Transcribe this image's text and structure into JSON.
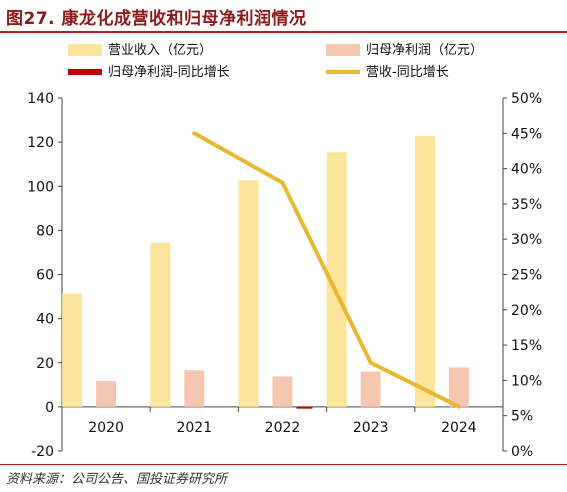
{
  "title": "图27. 康龙化成营收和归母净利润情况",
  "source": "资料来源：公司公告、国投证券研究所",
  "chart_data": {
    "type": "bar",
    "categories": [
      "2020",
      "2021",
      "2022",
      "2023",
      "2024"
    ],
    "series": [
      {
        "name": "营业收入（亿元）",
        "kind": "bar",
        "axis": "left",
        "color": "#fde49b",
        "values": [
          51.3,
          74.4,
          102.7,
          115.4,
          122.8
        ]
      },
      {
        "name": "归母净利润（亿元）",
        "kind": "bar",
        "axis": "left",
        "color": "#f6c7b0",
        "values": [
          11.7,
          16.6,
          13.8,
          16.0,
          17.9
        ]
      },
      {
        "name": "归母净利润-同比增长",
        "kind": "bar",
        "axis": "left",
        "color": "#c00000",
        "values": [
          0.0,
          0.0,
          -0.8,
          0.0,
          0.0
        ]
      },
      {
        "name": "营收-同比增长",
        "kind": "line",
        "axis": "right",
        "color": "#e8b830",
        "values": [
          null,
          45.0,
          38.0,
          12.5,
          6.3
        ]
      }
    ],
    "ylim_left": [
      -20,
      140
    ],
    "yticks_left": [
      -20,
      0,
      20,
      40,
      60,
      80,
      100,
      120,
      140
    ],
    "ylim_right": [
      0,
      50
    ],
    "yticks_right": [
      "0%",
      "5%",
      "10%",
      "15%",
      "20%",
      "25%",
      "30%",
      "35%",
      "40%",
      "45%",
      "50%"
    ],
    "grid": false,
    "legend": "top"
  }
}
